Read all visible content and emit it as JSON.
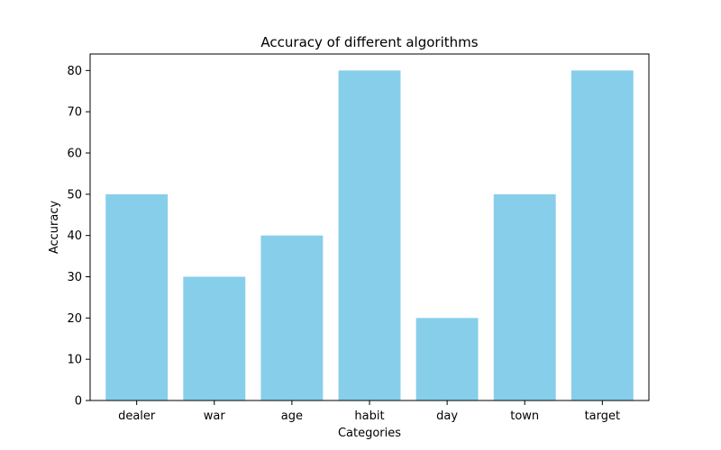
{
  "chart_data": {
    "type": "bar",
    "title": "Accuracy of different algorithms",
    "xlabel": "Categories",
    "ylabel": "Accuracy",
    "categories": [
      "dealer",
      "war",
      "age",
      "habit",
      "day",
      "town",
      "target"
    ],
    "values": [
      50,
      30,
      40,
      80,
      20,
      50,
      80
    ],
    "ylim": [
      0,
      84
    ],
    "yticks": [
      0,
      10,
      20,
      30,
      40,
      50,
      60,
      70,
      80
    ],
    "bar_color": "#87CEEB",
    "grid": false,
    "legend": "none"
  }
}
